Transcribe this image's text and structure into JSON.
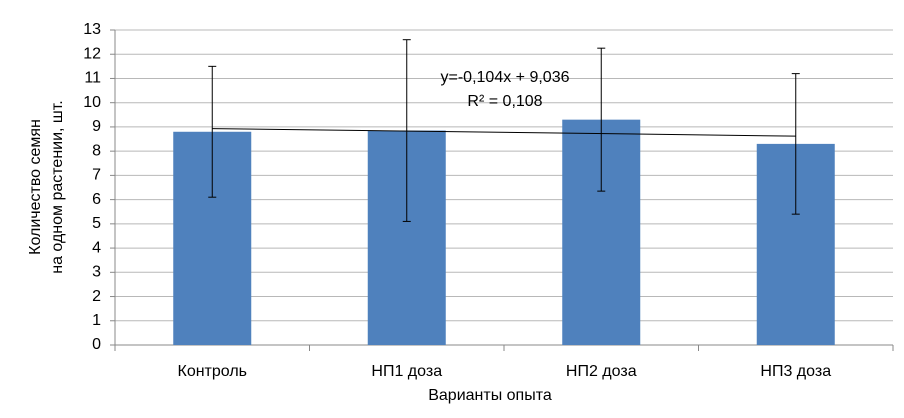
{
  "chart_data": {
    "type": "bar",
    "x_label": "Варианты опыта",
    "y_label": [
      "Количество семян",
      "на одном растении, шт."
    ],
    "categories": [
      "Контроль",
      "НП1 доза",
      "НП2 доза",
      "НП3 доза"
    ],
    "values": [
      8.8,
      8.85,
      9.3,
      8.3
    ],
    "errors": [
      2.7,
      3.75,
      2.95,
      2.9
    ],
    "color": "#4f81bd",
    "ylim": [
      0,
      13
    ],
    "yticks": [
      0,
      1,
      2,
      3,
      4,
      5,
      6,
      7,
      8,
      9,
      10,
      11,
      12,
      13
    ],
    "grid": true,
    "trendline": {
      "slope": -0.104,
      "intercept": 9.036,
      "equation": "y=-0,104x + 9,036",
      "r2": "R² = 0,108"
    }
  }
}
